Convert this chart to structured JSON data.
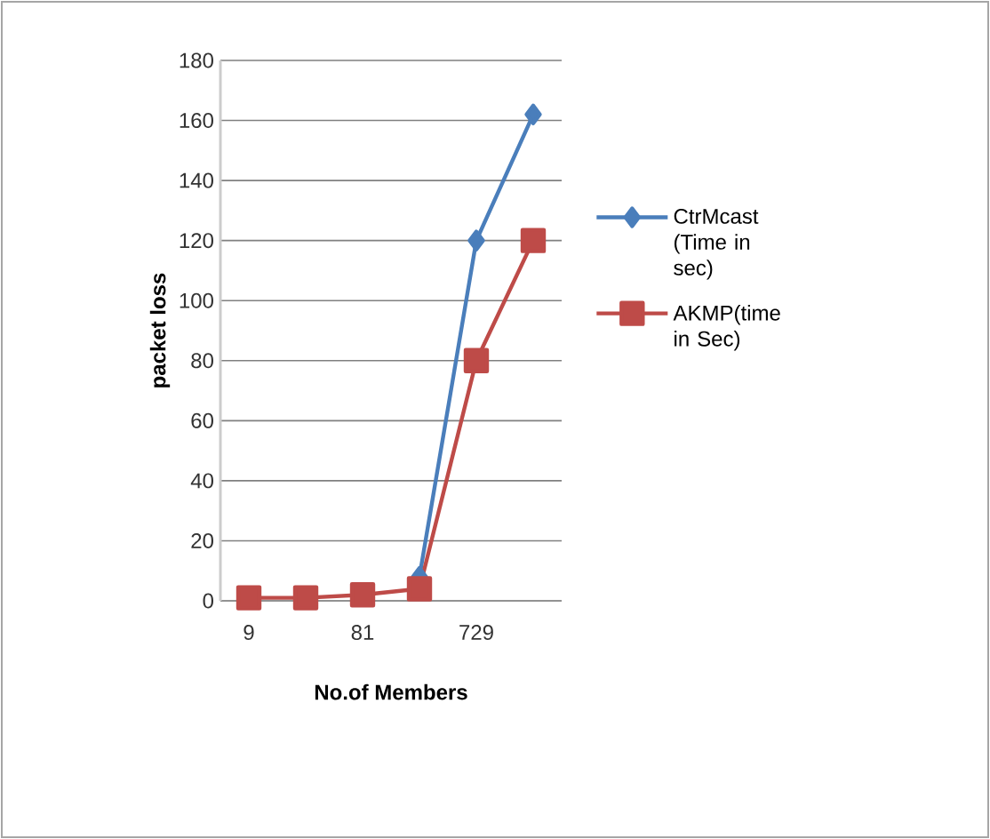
{
  "chart_data": {
    "type": "line",
    "xlabel": "No.of Members",
    "ylabel": "packet loss",
    "categories": [
      "9",
      null,
      "81",
      null,
      "729",
      null
    ],
    "series": [
      {
        "name": "CtrMcast (Time in sec)",
        "color": "#4a7ebb",
        "marker": "diamond",
        "values": [
          null,
          null,
          null,
          8,
          120,
          162
        ]
      },
      {
        "name": "AKMP(time in Sec)",
        "color": "#be4b48",
        "marker": "square",
        "values": [
          1,
          1,
          2,
          4,
          80,
          120
        ]
      }
    ],
    "ylim": [
      0,
      180
    ],
    "yticks": [
      0,
      20,
      40,
      60,
      80,
      100,
      120,
      140,
      160,
      180
    ],
    "grid": "y",
    "legend": "right"
  }
}
